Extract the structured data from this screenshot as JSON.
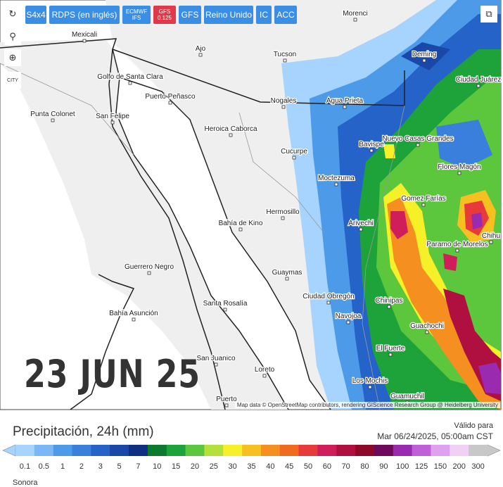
{
  "toolbar": {
    "buttons": [
      "S4x4",
      "RDPS (en inglés)",
      "ECMWF IFS",
      "GFS 0.125",
      "GFS",
      "Reino Unido",
      "IC",
      "ACC"
    ],
    "city_icon": "CITY"
  },
  "map": {
    "labels": [
      "Morenci",
      "Mexicali",
      "Ajo",
      "Tucson",
      "Deming",
      "Golfo de Santa Clara",
      "Puerto Peñasco",
      "Ciudad Juárez",
      "Nogales",
      "Agua Prieta",
      "Punta Colonet",
      "San Felipe",
      "Heroica Caborca",
      "Bavispe",
      "Nuevo Casas Grandes",
      "Cucurpe",
      "Flores Magón",
      "Moctezuma",
      "Gomez Farías",
      "Hermosillo",
      "Bahía de Kino",
      "Arivechi",
      "Chihu",
      "Paramo de Morelos",
      "Guerrero Negro",
      "Guaymas",
      "Ciudad Obregón",
      "Chinipas",
      "Bahía Asunción",
      "Santa Rosalía",
      "Navojoa",
      "Guachochi",
      "El Fuerte",
      "San Juanico",
      "Loreto",
      "Los Mochis",
      "Guamuchil",
      "Puerto"
    ],
    "date": "23 JUN 25",
    "attribution": "Map data © OpenStreetMap contributors, rendering GIScience Research Group @ Heidelberg University"
  },
  "legend": {
    "title": "Precipitación, 24h (mm)",
    "valid_label": "Válido para",
    "valid_time": "Mar 06/24/2025, 05:00am CST",
    "steps": [
      {
        "label": "0.1",
        "color": "#a6d4ff"
      },
      {
        "label": "0.5",
        "color": "#7ab8f5"
      },
      {
        "label": "1",
        "color": "#4d9ae8"
      },
      {
        "label": "2",
        "color": "#3a7fdc"
      },
      {
        "label": "3",
        "color": "#2563c8"
      },
      {
        "label": "5",
        "color": "#1a48a8"
      },
      {
        "label": "7",
        "color": "#0f2f80"
      },
      {
        "label": "10",
        "color": "#0b7a2e"
      },
      {
        "label": "15",
        "color": "#1ea23a"
      },
      {
        "label": "20",
        "color": "#5cc63c"
      },
      {
        "label": "25",
        "color": "#b4e03a"
      },
      {
        "label": "30",
        "color": "#f5f028"
      },
      {
        "label": "35",
        "color": "#f5c020"
      },
      {
        "label": "40",
        "color": "#f59020"
      },
      {
        "label": "45",
        "color": "#f06a20"
      },
      {
        "label": "50",
        "color": "#e83a3a"
      },
      {
        "label": "60",
        "color": "#d01e5a"
      },
      {
        "label": "70",
        "color": "#b01040"
      },
      {
        "label": "80",
        "color": "#8c0a28"
      },
      {
        "label": "90",
        "color": "#6e0a5a"
      },
      {
        "label": "100",
        "color": "#9a2ab0"
      },
      {
        "label": "125",
        "color": "#c060d8"
      },
      {
        "label": "150",
        "color": "#e0a0f0"
      },
      {
        "label": "200",
        "color": "#f0d0f5"
      },
      {
        "label": "300",
        "color": "#c8c8c8"
      }
    ]
  },
  "region": "Sonora"
}
